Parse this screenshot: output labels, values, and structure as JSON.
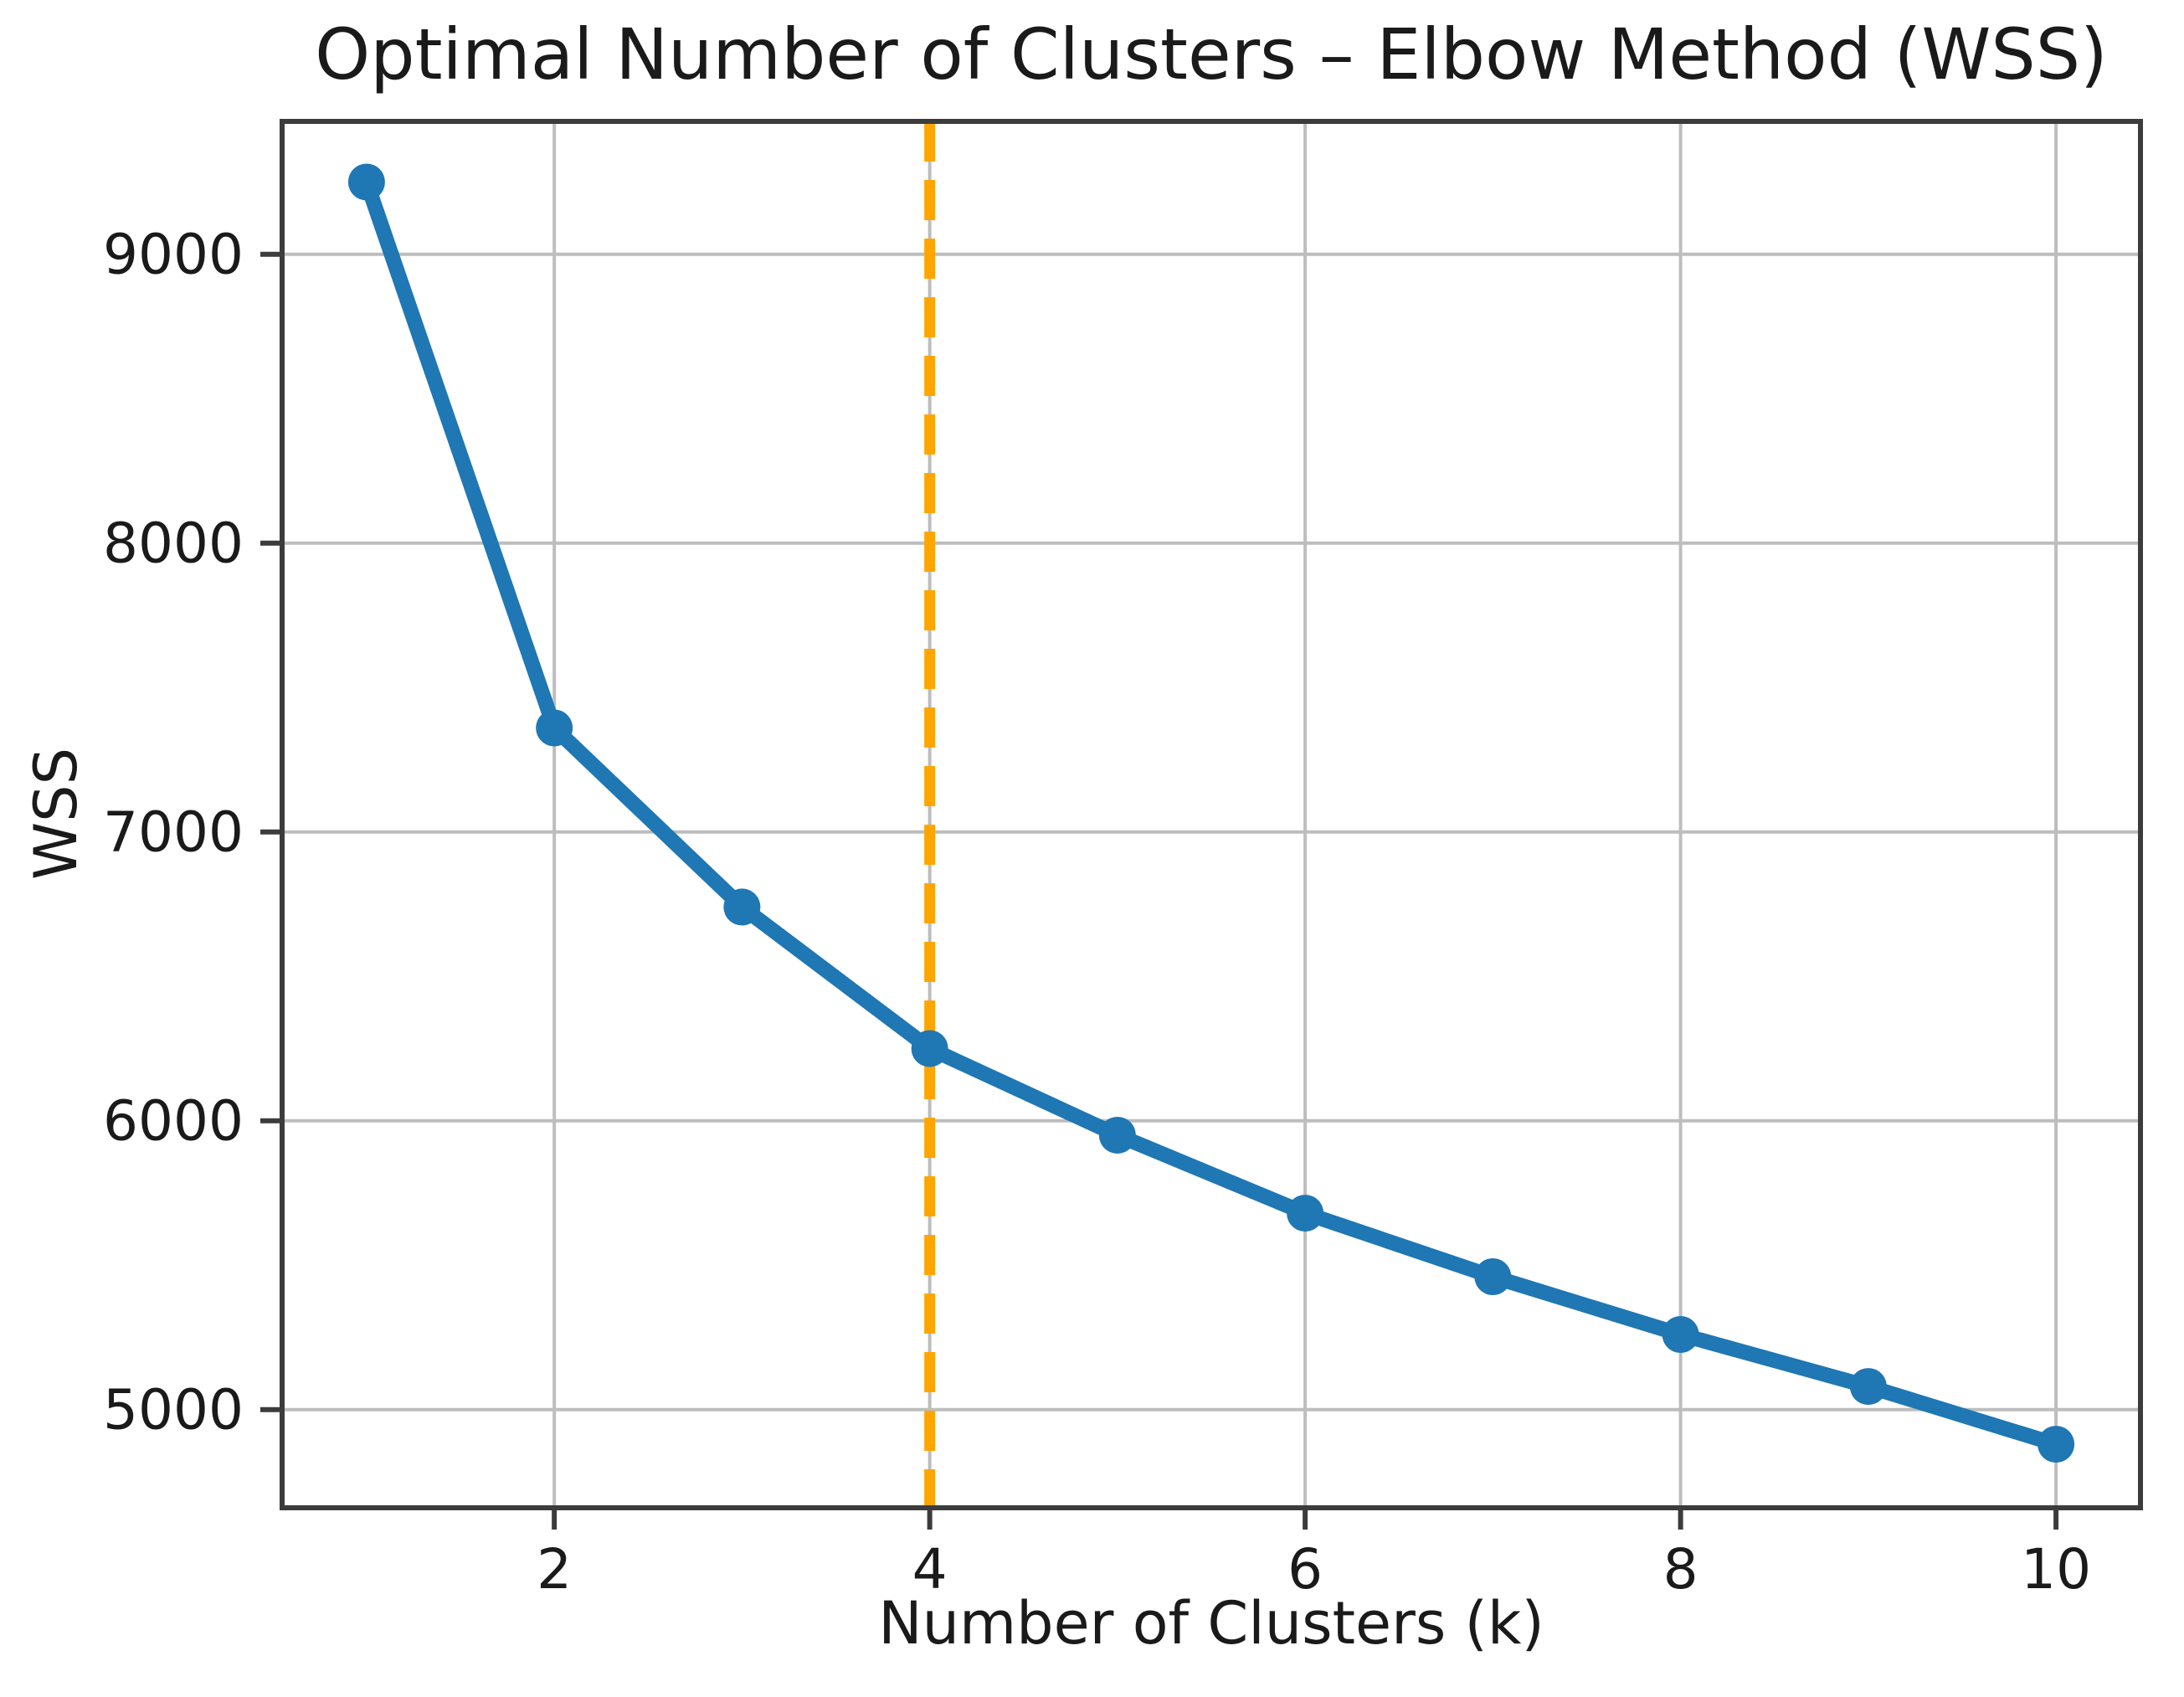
{
  "figure": {
    "background": "#ffffff",
    "text_color": "#1a1a1a"
  },
  "chart_data": {
    "type": "line",
    "title": "Optimal Number of Clusters – Elbow Method (WSS)",
    "xlabel": "Number of Clusters (k)",
    "ylabel": "WSS",
    "x": [
      1,
      2,
      3,
      4,
      5,
      6,
      7,
      8,
      9,
      10
    ],
    "series": [
      {
        "name": "WSS",
        "values": [
          9250,
          7360,
          6740,
          6250,
          5950,
          5680,
          5460,
          5260,
          5080,
          4880
        ]
      }
    ],
    "x_ticks": [
      2,
      4,
      6,
      8,
      10
    ],
    "y_ticks": [
      5000,
      6000,
      7000,
      8000,
      9000
    ],
    "xlim": [
      0.55,
      10.45
    ],
    "ylim": [
      4660,
      9460
    ],
    "grid": true,
    "legend_position": "none",
    "line_color": "#1f77b4",
    "marker": "circle",
    "annotations": [
      {
        "type": "vline",
        "x": 4,
        "style": "dashed",
        "color": "#FFA500",
        "meaning": "elbow at k = 4"
      }
    ]
  }
}
